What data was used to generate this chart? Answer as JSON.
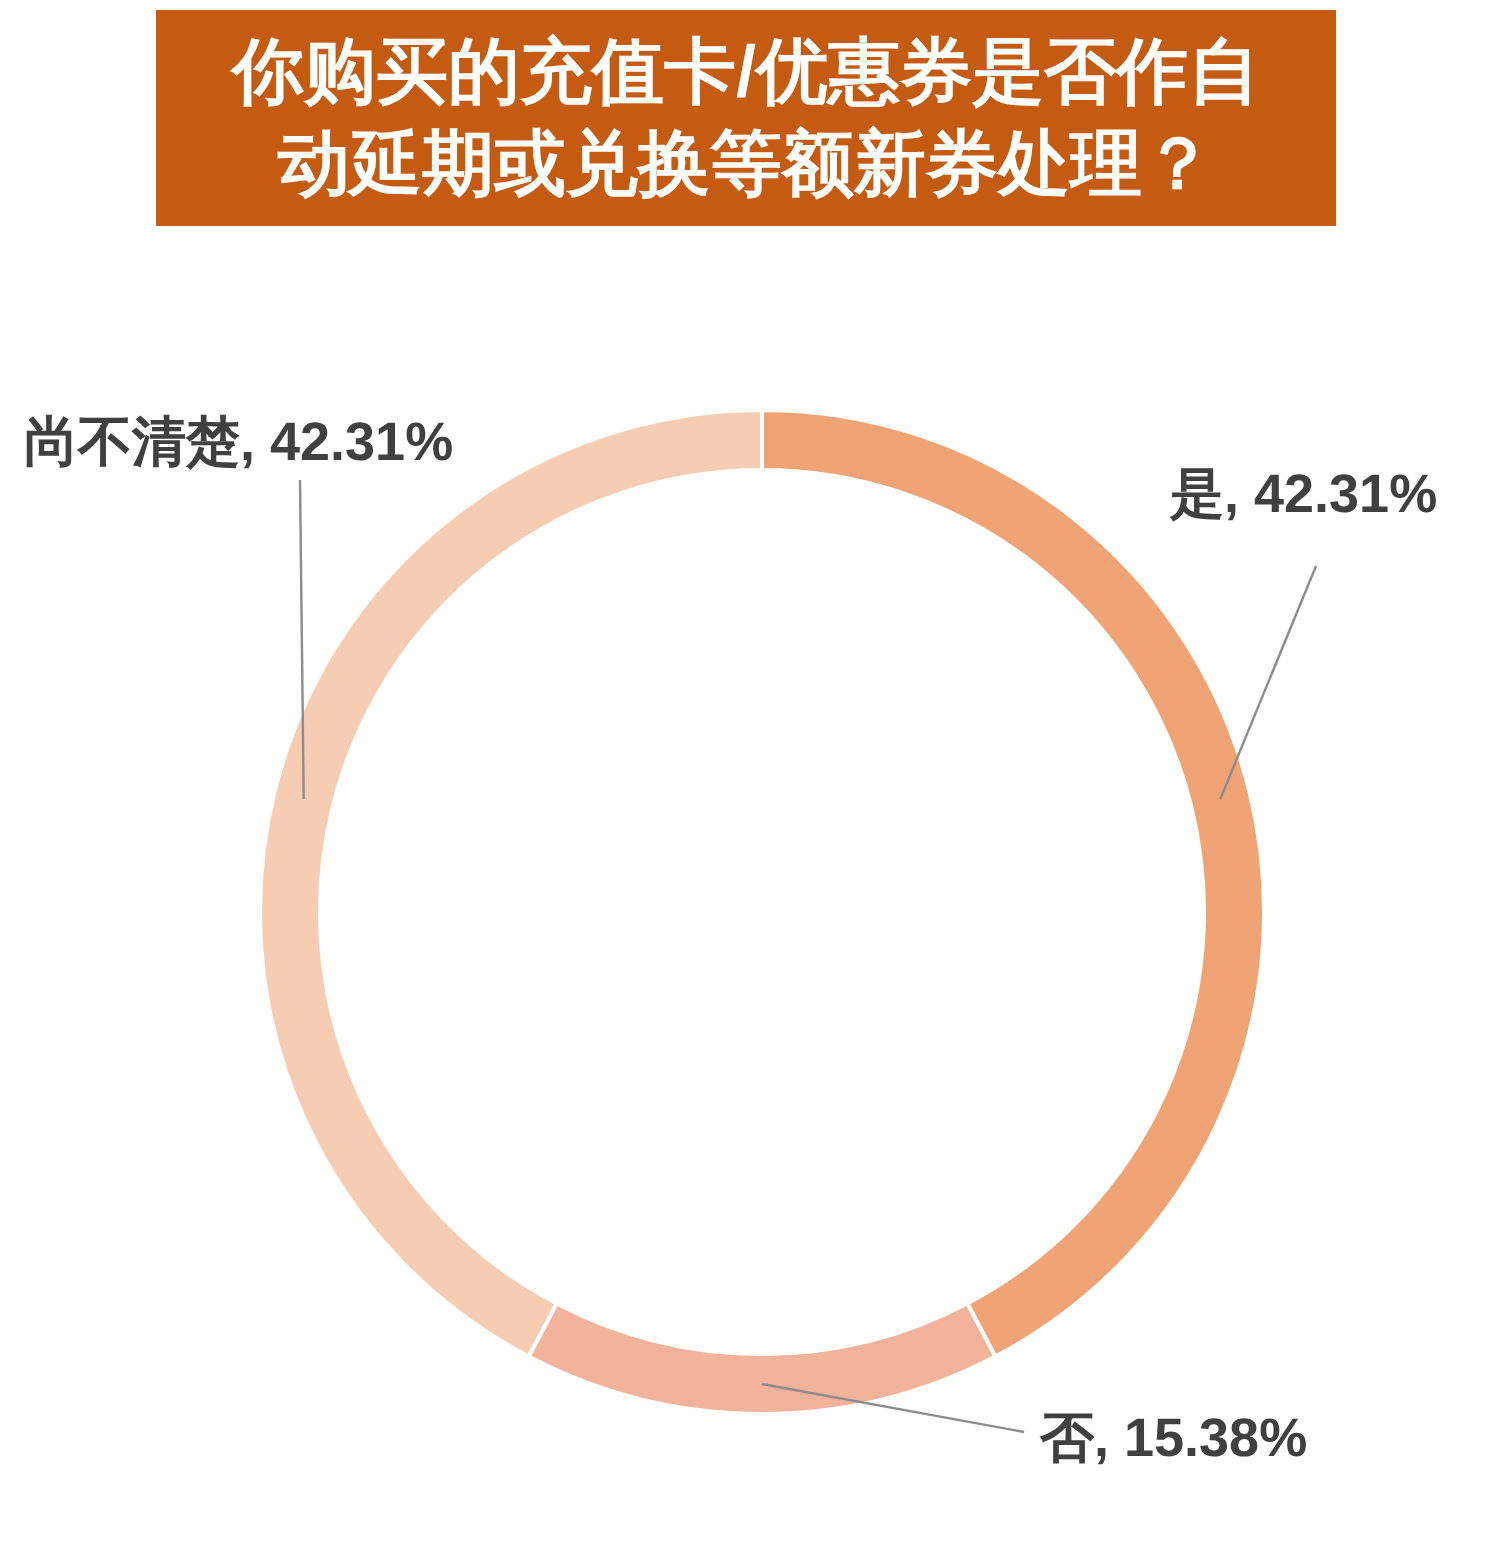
{
  "chart_data": {
    "type": "donut",
    "title": "你购买的充值卡/优惠券是否作自动延期或兑换等额新券处理？",
    "categories": [
      "是",
      "否",
      "尚不清楚"
    ],
    "values": [
      42.31,
      15.38,
      42.31
    ],
    "value_labels": [
      "42.31%",
      "15.38%",
      "42.31%"
    ],
    "colors": [
      "#f0a475",
      "#f3b39a",
      "#f6cdb2"
    ],
    "legend": false
  }
}
